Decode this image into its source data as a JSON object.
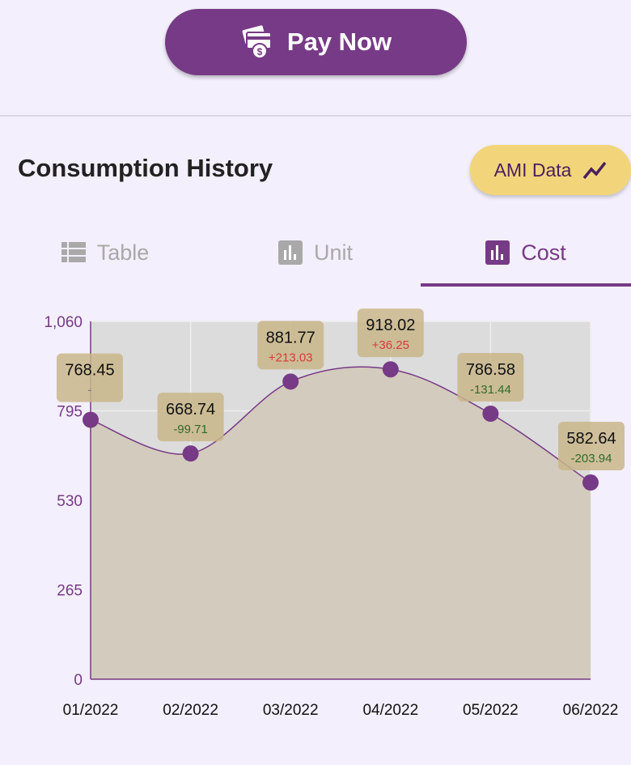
{
  "pay_button": {
    "label": "Pay Now",
    "icon": "card-dollar-icon"
  },
  "section": {
    "title": "Consumption History"
  },
  "ami_button": {
    "label": "AMI Data",
    "icon": "trend-line-icon"
  },
  "tabs": [
    {
      "label": "Table",
      "icon": "table-icon",
      "active": false
    },
    {
      "label": "Unit",
      "icon": "bar-chart-icon",
      "active": false
    },
    {
      "label": "Cost",
      "icon": "bar-chart-icon",
      "active": true
    }
  ],
  "colors": {
    "accent": "#773a86",
    "positive_change": "#d83a3a",
    "negative_change": "#2f6b2a",
    "label_box": "#c9b68a",
    "plot_bg": "#dcdcdc",
    "area_fill": "#d3cbbd"
  },
  "chart_data": {
    "type": "line",
    "categories": [
      "01/2022",
      "02/2022",
      "03/2022",
      "04/2022",
      "05/2022",
      "06/2022"
    ],
    "values": [
      768.45,
      668.74,
      881.77,
      918.02,
      786.58,
      582.64
    ],
    "changes": [
      "-",
      "-99.71",
      "+213.03",
      "+36.25",
      "-131.44",
      "-203.94"
    ],
    "ylim": [
      0,
      1060
    ],
    "yticks": [
      0,
      265,
      530,
      795,
      1060
    ],
    "ytick_labels": [
      "0",
      "265",
      "530",
      "795",
      "1,060"
    ],
    "grid": true,
    "xlabel": "",
    "ylabel": ""
  }
}
